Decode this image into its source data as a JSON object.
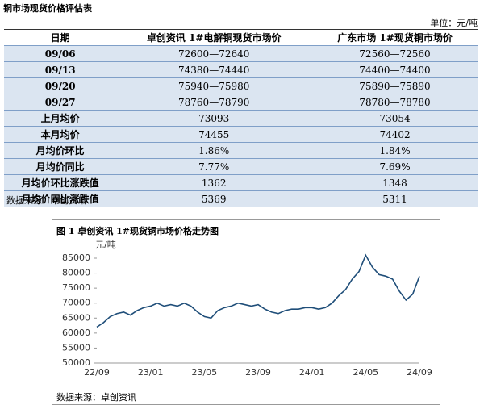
{
  "document": {
    "title": "铜市场现货价格评估表",
    "unit": "单位：元/吨",
    "table": {
      "header": [
        "日期",
        "卓创资讯 1#电解铜现货市场价",
        "广东市场 1#现货铜市场价"
      ],
      "rows": [
        [
          "09/06",
          "72600—72640",
          "72560—72560"
        ],
        [
          "09/13",
          "74380—74440",
          "74400—74400"
        ],
        [
          "09/20",
          "75940—75980",
          "75890—75890"
        ],
        [
          "09/27",
          "78760—78790",
          "78780—78780"
        ],
        [
          "上月均价",
          "73093",
          "73054"
        ],
        [
          "本月均价",
          "74455",
          "74402"
        ],
        [
          "月均价环比",
          "1.86%",
          "1.84%"
        ],
        [
          "月均价同比",
          "7.77%",
          "7.69%"
        ],
        [
          "月均价环比涨跌值",
          "1362",
          "1348"
        ],
        [
          "月均价同比涨跌值",
          "5369",
          "5311"
        ]
      ]
    },
    "table_source": "数据来源：卓创资讯",
    "figure_caption": "图 1 卓创资讯 1#现货铜市场价格走势图",
    "figure_source": "数据来源：卓创资讯"
  },
  "chart_data": {
    "type": "line",
    "y_label": "元/吨",
    "categories": [
      "22/09",
      null,
      null,
      null,
      null,
      null,
      null,
      null,
      "23/01",
      null,
      null,
      null,
      null,
      null,
      null,
      null,
      "23/05",
      null,
      null,
      null,
      null,
      null,
      null,
      null,
      "23/09",
      null,
      null,
      null,
      null,
      null,
      null,
      null,
      "24/01",
      null,
      null,
      null,
      null,
      null,
      null,
      null,
      "24/05",
      null,
      null,
      null,
      null,
      null,
      null,
      null,
      "24/09"
    ],
    "series": [
      {
        "color": "#1f4e79",
        "values": [
          62000,
          63500,
          65500,
          66500,
          67000,
          66000,
          67500,
          68500,
          69000,
          70000,
          69000,
          69500,
          69000,
          70000,
          69000,
          67000,
          65500,
          65000,
          67500,
          68500,
          69000,
          70000,
          69500,
          69000,
          69500,
          68000,
          67000,
          66500,
          67500,
          68000,
          68000,
          68500,
          68500,
          68000,
          68500,
          70000,
          72500,
          74500,
          78000,
          80500,
          86000,
          82000,
          79500,
          79000,
          78000,
          74000,
          71000,
          73000,
          79000
        ]
      }
    ],
    "ylim": [
      50000,
      85000
    ],
    "yticks": [
      50000,
      55000,
      60000,
      65000,
      70000,
      75000,
      80000,
      85000
    ]
  }
}
